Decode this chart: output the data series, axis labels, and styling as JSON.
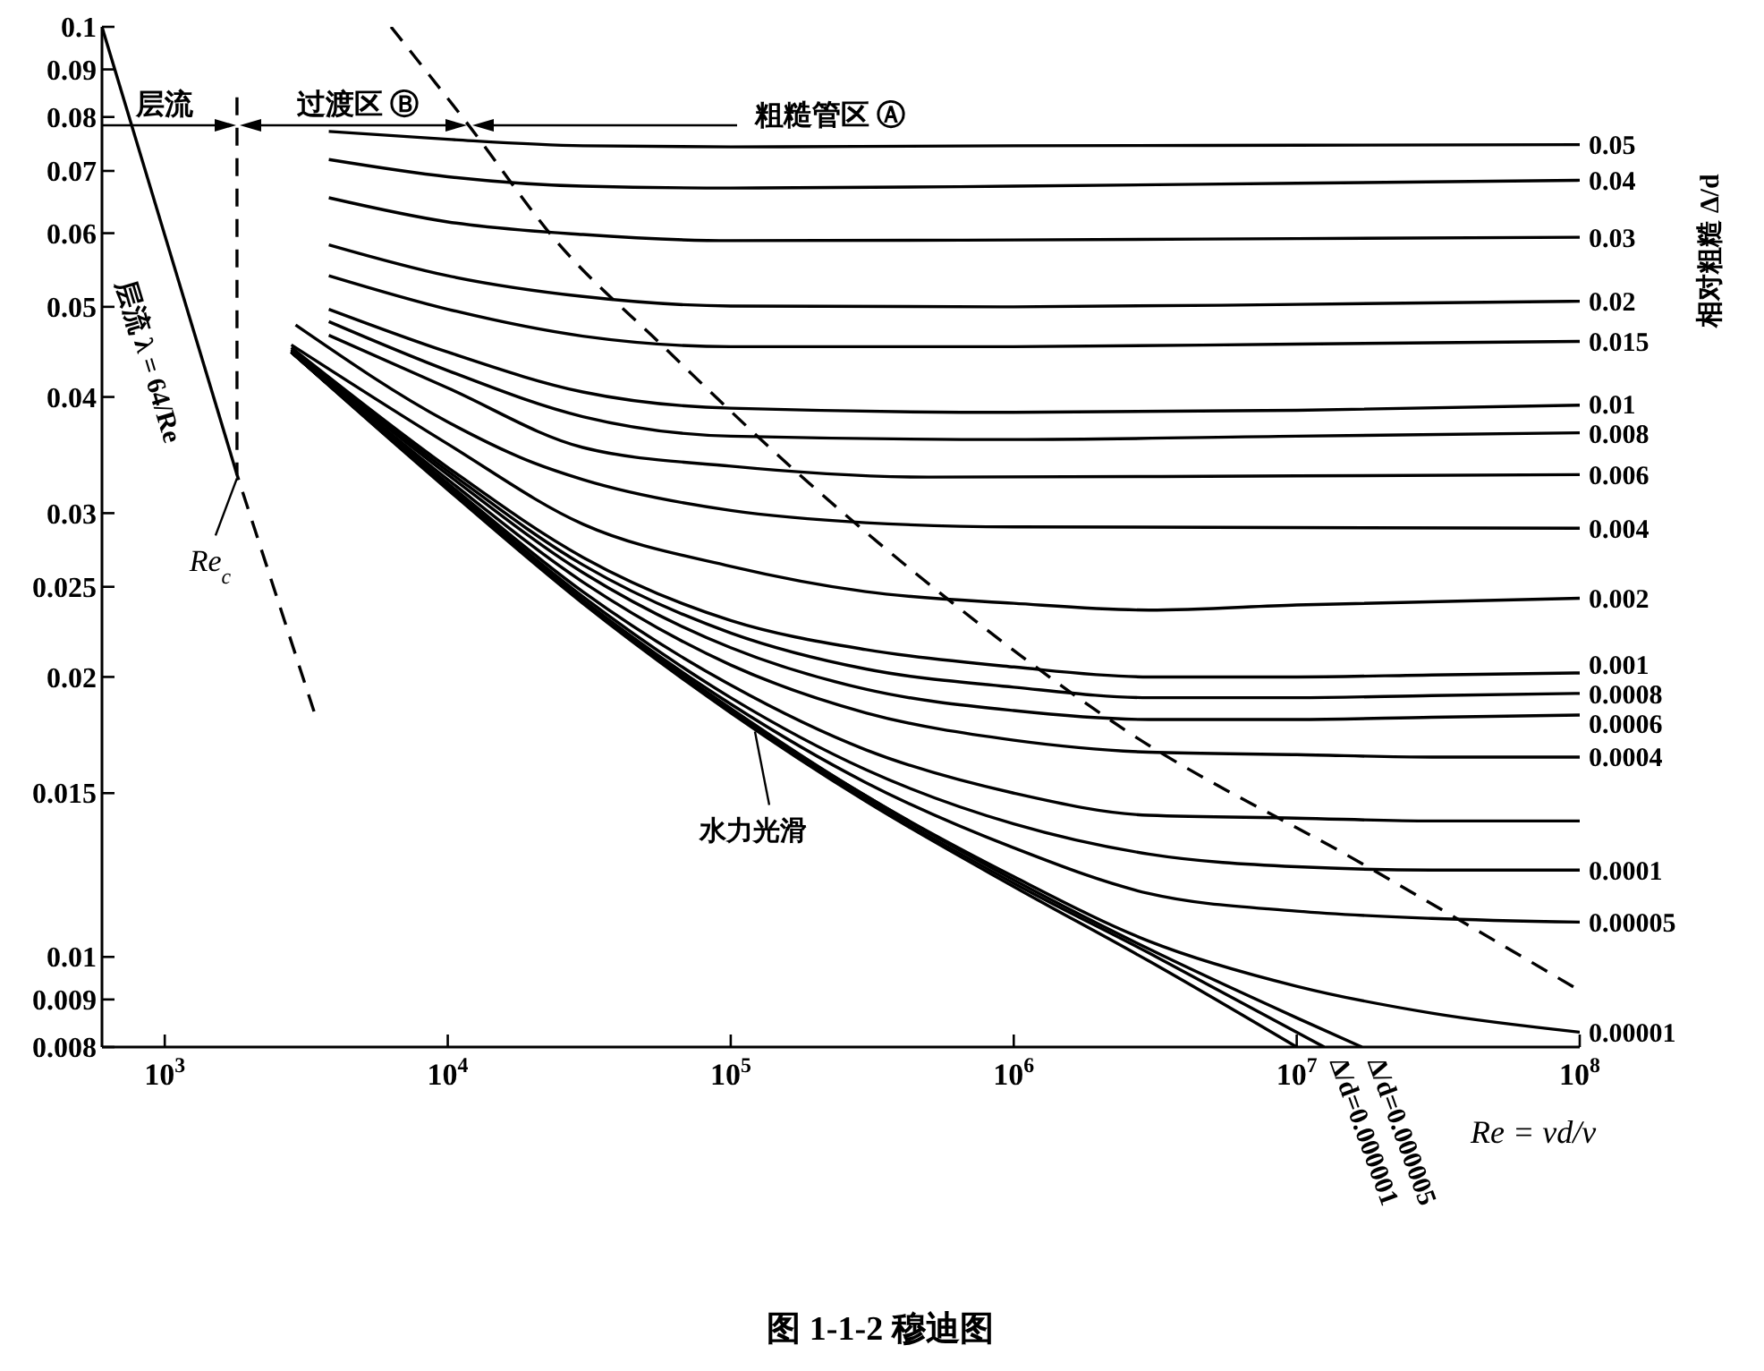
{
  "chart_data": {
    "type": "line",
    "title": "图 1-1-2 穆迪图",
    "xlabel": "Re = vd/ν",
    "color": "#000000",
    "line_style": "solid",
    "log": "xy",
    "xlim": [
      600,
      100000000
    ],
    "xticks": [
      {
        "value": 1000,
        "label": "10$^{3}$"
      },
      {
        "value": 10000,
        "label": "10$^{4}$"
      },
      {
        "value": 100000,
        "label": "10$^{5}$"
      },
      {
        "value": 1000000,
        "label": "10$^{6}$"
      },
      {
        "value": 10000000,
        "label": "10$^{7}$"
      },
      {
        "value": 100000000,
        "label": "10$^{8}$"
      }
    ],
    "ylim": [
      0.008,
      0.1
    ],
    "yticks": [
      0.1,
      0.09,
      0.08,
      0.07,
      0.06,
      0.05,
      0.04,
      0.03,
      0.025,
      0.02,
      0.015,
      0.01,
      0.009,
      0.008
    ],
    "annotations": [
      "层流",
      "过渡区 Ⓑ",
      "粗糙管区 Ⓐ",
      {
        "text": "层流 λ = 64/Re",
        "x": 1370,
        "y": 0.0437
      },
      {
        "text": "Re$_{c}$",
        "x": 1800,
        "y": 0.033
      },
      {
        "text": "水力光滑",
        "x": 120000,
        "y": 0.0177
      },
      "相对粗糙 Δ/d"
    ],
    "series": [
      {
        "x": [
          600,
          1800
        ],
        "values": [
          0.1,
          0.033
        ]
      },
      {
        "x": [
          1800,
          1800,
          3400
        ],
        "values": [
          0.084,
          0.033,
          0.0182
        ],
        "line_style": "dashed"
      },
      {
        "x": [
          6300,
          12000,
          24000,
          57000,
          175000,
          610000,
          2500000,
          17000000,
          100000000
        ],
        "values": [
          0.1,
          0.078,
          0.059,
          0.0455,
          0.033,
          0.024,
          0.0175,
          0.0126,
          0.0092
        ],
        "line_style": "dashed"
      },
      {
        "name": "0.05",
        "x": [
          3800,
          10000,
          30000,
          100000,
          1000000,
          10000000,
          100000000
        ],
        "values": [
          0.0772,
          0.0757,
          0.0745,
          0.0743,
          0.0745,
          0.0746,
          0.0747
        ]
      },
      {
        "name": "0.04",
        "x": [
          3800,
          10000,
          30000,
          100000,
          1000000,
          10000000,
          100000000
        ],
        "values": [
          0.072,
          0.069,
          0.0674,
          0.0671,
          0.0674,
          0.0679,
          0.0684
        ]
      },
      {
        "name": "0.03",
        "x": [
          3800,
          10000,
          30000,
          100000,
          1000000,
          10000000,
          100000000
        ],
        "values": [
          0.0655,
          0.0617,
          0.0598,
          0.0589,
          0.059,
          0.0592,
          0.0594
        ]
      },
      {
        "name": "0.02",
        "x": [
          3800,
          10000,
          30000,
          100000,
          1000000,
          10000000,
          100000000
        ],
        "values": [
          0.0583,
          0.054,
          0.0513,
          0.0501,
          0.05,
          0.0503,
          0.0507
        ]
      },
      {
        "name": "0.015",
        "x": [
          3800,
          10000,
          30000,
          100000,
          1000000,
          10000000,
          100000000
        ],
        "values": [
          0.054,
          0.0497,
          0.0465,
          0.0453,
          0.0453,
          0.0456,
          0.0459
        ]
      },
      {
        "name": "0.01",
        "x": [
          3800,
          10000,
          30000,
          100000,
          1000000,
          10000000,
          100000000
        ],
        "values": [
          0.0497,
          0.0447,
          0.0405,
          0.0389,
          0.0385,
          0.0387,
          0.0392
        ]
      },
      {
        "name": "0.008",
        "x": [
          3800,
          10000,
          30000,
          100000,
          1000000,
          10000000,
          100000000
        ],
        "values": [
          0.0482,
          0.0427,
          0.0381,
          0.0363,
          0.036,
          0.0363,
          0.0366
        ]
      },
      {
        "name": "0.006",
        "x": [
          3800,
          10000,
          30000,
          100000,
          500000,
          10000000,
          100000000
        ],
        "values": [
          0.0466,
          0.0409,
          0.0353,
          0.0337,
          0.0328,
          0.0329,
          0.033
        ]
      },
      {
        "name": "0.004",
        "x": [
          2900,
          10000,
          20000,
          30000,
          100000,
          300000,
          1000000,
          100000000
        ],
        "values": [
          0.0478,
          0.0376,
          0.034,
          0.0326,
          0.0302,
          0.0293,
          0.029,
          0.0289
        ]
      },
      {
        "name": "0.002",
        "x": [
          2800,
          10000,
          30000,
          100000,
          300000,
          1000000,
          3000000,
          10000000,
          100000000
        ],
        "values": [
          0.0455,
          0.0356,
          0.0292,
          0.0263,
          0.0247,
          0.024,
          0.0236,
          0.0239,
          0.0243
        ]
      },
      {
        "name": "0.001",
        "x": [
          2800,
          10000,
          30000,
          100000,
          300000,
          1000000,
          3000000,
          10000000,
          30000000,
          100000000
        ],
        "values": [
          0.0452,
          0.0336,
          0.0269,
          0.023,
          0.0214,
          0.0205,
          0.02,
          0.02,
          0.0201,
          0.0202
        ]
      },
      {
        "name": "0.0008",
        "x": [
          2800,
          10000,
          30000,
          100000,
          300000,
          1000000,
          3000000,
          10000000,
          30000000,
          100000000
        ],
        "values": [
          0.045,
          0.0333,
          0.0264,
          0.0223,
          0.0204,
          0.0195,
          0.019,
          0.019,
          0.0191,
          0.0192
        ]
      },
      {
        "name": "0.0006",
        "x": [
          2800,
          10000,
          30000,
          100000,
          300000,
          1000000,
          3000000,
          10000000,
          30000000,
          100000000
        ],
        "values": [
          0.0449,
          0.033,
          0.0259,
          0.0215,
          0.0194,
          0.0184,
          0.018,
          0.018,
          0.0181,
          0.0182
        ]
      },
      {
        "name": "0.0004",
        "x": [
          2800,
          10000,
          30000,
          100000,
          300000,
          1000000,
          3000000,
          10000000,
          30000000,
          100000000
        ],
        "values": [
          0.0448,
          0.0326,
          0.0253,
          0.0206,
          0.0183,
          0.0171,
          0.0166,
          0.0165,
          0.0164,
          0.0164
        ]
      },
      {
        "x": [
          2800,
          10000,
          30000,
          100000,
          300000,
          1000000,
          3000000,
          10000000,
          30000000,
          100000000
        ],
        "values": [
          0.0447,
          0.0323,
          0.0247,
          0.0196,
          0.0167,
          0.015,
          0.0142,
          0.0141,
          0.014,
          0.014
        ]
      },
      {
        "name": "0.0001",
        "x": [
          2800,
          10000,
          30000,
          100000,
          300000,
          1000000,
          3000000,
          10000000,
          30000000,
          100000000
        ],
        "values": [
          0.0447,
          0.0321,
          0.0244,
          0.019,
          0.0159,
          0.0139,
          0.0129,
          0.0125,
          0.0124,
          0.0124
        ]
      },
      {
        "name": "0.00005",
        "x": [
          2800,
          10000,
          30000,
          100000,
          300000,
          1000000,
          3000000,
          10000000,
          30000000,
          100000000
        ],
        "values": [
          0.0447,
          0.032,
          0.0242,
          0.0187,
          0.0154,
          0.0131,
          0.0117,
          0.0112,
          0.011,
          0.0109
        ]
      },
      {
        "name": "0.00001",
        "x": [
          2800,
          10000,
          30000,
          100000,
          300000,
          1000000,
          3000000,
          10000000,
          30000000,
          100000000
        ],
        "values": [
          0.0447,
          0.0319,
          0.0241,
          0.0185,
          0.0149,
          0.0122,
          0.0104,
          0.0093,
          0.0087,
          0.0083
        ]
      },
      {
        "name": "Δ/d=0.000005",
        "x": [
          2800,
          10000,
          30000,
          100000,
          300000,
          1000000,
          3000000,
          10000000,
          17000000
        ],
        "values": [
          0.0447,
          0.0319,
          0.0241,
          0.0184,
          0.0149,
          0.0121,
          0.0102,
          0.0086,
          0.008
        ]
      },
      {
        "name": "Δ/d=0.000001",
        "x": [
          2800,
          10000,
          30000,
          100000,
          300000,
          1000000,
          3000000,
          10000000,
          12500000
        ],
        "values": [
          0.0447,
          0.0319,
          0.0241,
          0.0184,
          0.0148,
          0.012,
          0.0101,
          0.0083,
          0.008
        ]
      },
      {
        "x": [
          2800,
          10000,
          30000,
          100000,
          300000,
          1000000,
          3000000,
          10000000
        ],
        "values": [
          0.0447,
          0.0318,
          0.024,
          0.0183,
          0.0147,
          0.0119,
          0.0099,
          0.008
        ]
      }
    ]
  }
}
